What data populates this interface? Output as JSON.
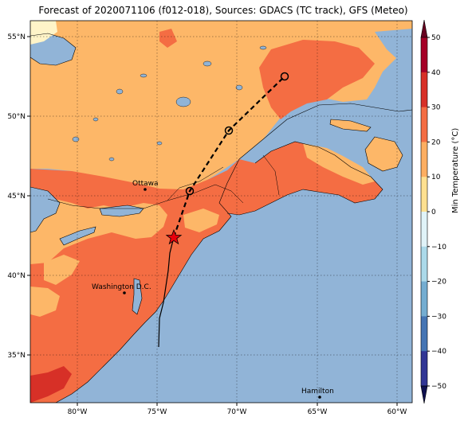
{
  "title": "Forecast of 2020071106 (f012-018), Sources: GDACS (TC track), GFS (Meteo)",
  "map": {
    "lon_ticks": [
      "80°W",
      "75°W",
      "70°W",
      "65°W",
      "60°W"
    ],
    "lat_ticks": [
      "55°N",
      "50°N",
      "45°N",
      "40°N",
      "35°N"
    ],
    "cities": [
      {
        "name": "Ottawa"
      },
      {
        "name": "Washington D.C."
      },
      {
        "name": "Hamilton"
      }
    ],
    "track": {
      "current_marker": "star-icon",
      "forecast_markers": "circle-icon"
    }
  },
  "colorbar": {
    "label": "Min Temperature (°C)",
    "ticks": [
      "50",
      "40",
      "30",
      "20",
      "10",
      "0",
      "−10",
      "−20",
      "−30",
      "−40",
      "−50"
    ],
    "colors": [
      "#a50026",
      "#d73027",
      "#f46d43",
      "#fdae61",
      "#fee090",
      "#ffffbf",
      "#e0f3f8",
      "#abd9e9",
      "#74add1",
      "#4575b4",
      "#313695"
    ]
  },
  "colors": {
    "ocean": "#91b4d7",
    "warm_20_30": "#f46d43",
    "warm_10_20": "#fdb768",
    "warm_0_10": "#fff4c8",
    "hot_30_40": "#d73027"
  }
}
